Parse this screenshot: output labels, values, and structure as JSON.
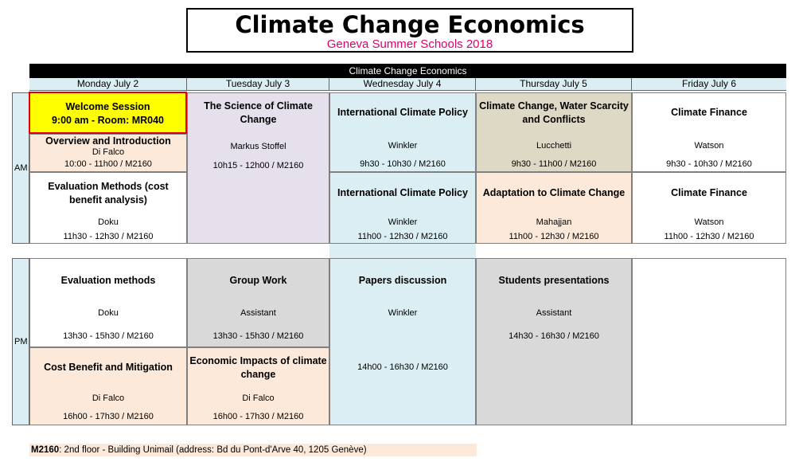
{
  "header": {
    "title": "Climate Change Economics",
    "subtitle": "Geneva Summer Schools 2018"
  },
  "table_title": "Climate Change Economics",
  "days": [
    "Monday July 2",
    "Tuesday July 3",
    "Wednesday July 4",
    "Thursday July 5",
    "Friday July 6"
  ],
  "labels": {
    "am": "AM",
    "pm": "PM"
  },
  "mon": {
    "welcome_l1": "Welcome Session",
    "welcome_l2": "9:00 am -  Room: MR040",
    "s1": {
      "title": "Overview and Introduction",
      "who": "Di Falco",
      "time": "10:00 - 11h00 / M2160"
    },
    "s2": {
      "title": "Evaluation Methods (cost benefit analysis)",
      "who": "Doku",
      "time": "11h30 - 12h30 / M2160"
    },
    "s3": {
      "title": "Evaluation methods",
      "who": "Doku",
      "time": "13h30 - 15h30 / M2160"
    },
    "s4": {
      "title": "Cost Benefit and Mitigation",
      "who": "Di Falco",
      "time": "16h00 - 17h30 / M2160"
    }
  },
  "tue": {
    "s1": {
      "title": "The Science of Climate Change",
      "who": "Markus Stoffel",
      "time": "10h15 - 12h00 / M2160"
    },
    "s2": {
      "title": "Group Work",
      "who": "Assistant",
      "time": "13h30 - 15h30 / M2160"
    },
    "s3": {
      "title": "Economic Impacts of climate change",
      "who": "Di Falco",
      "time": "16h00 - 17h30 / M2160"
    }
  },
  "wed": {
    "s1": {
      "title": "International Climate Policy",
      "who": "Winkler",
      "time": "9h30 - 10h30 / M2160"
    },
    "s2": {
      "title": "International Climate Policy",
      "who": "Winkler",
      "time": "11h00 - 12h30 / M2160"
    },
    "s3": {
      "title": "Papers discussion",
      "who": "Winkler",
      "time": "14h00 - 16h30 / M2160"
    }
  },
  "thu": {
    "s1": {
      "title": "Climate Change, Water Scarcity and Conflicts",
      "who": "Lucchetti",
      "time": "9h30 - 11h00 / M2160"
    },
    "s2": {
      "title": "Adaptation to Climate Change",
      "who": "Mahajjan",
      "time": "11h00 - 12h30 / M2160"
    },
    "s3": {
      "title": "Students presentations",
      "who": "Assistant",
      "time": "14h30 - 16h30 / M2160"
    }
  },
  "fri": {
    "s1": {
      "title": "Climate Finance",
      "who": "Watson",
      "time": "9h30 - 10h30 / M2160"
    },
    "s2": {
      "title": "Climate Finance",
      "who": "Watson",
      "time": "11h00 - 12h30 / M2160"
    }
  },
  "footer": {
    "room": "M2160",
    "text": ": 2nd floor - Building Unimail (address: Bd du Pont-d'Arve 40, 1205 Genève)"
  }
}
